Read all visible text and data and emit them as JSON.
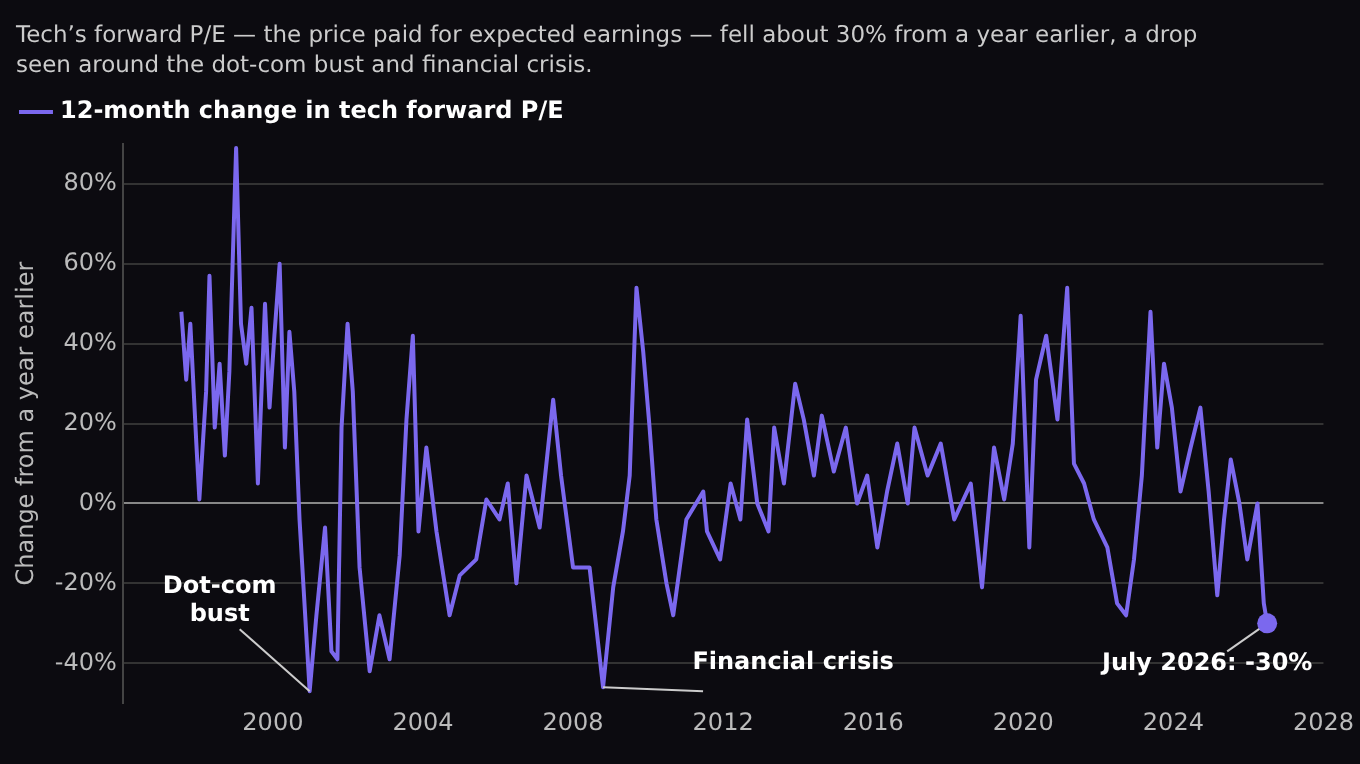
{
  "chart_data": {
    "type": "line",
    "subtitle": "Tech’s forward P/E — the price paid for expected earnings — fell about 30% from a year earlier, a drop seen around the dot-com bust and financial crisis.",
    "ylabel": "Change from a year earlier",
    "legend": "top left",
    "grid": "y",
    "marker": "none",
    "line_style": "solid",
    "xlim": [
      1996,
      2028
    ],
    "xticks": [
      2000,
      2004,
      2008,
      2012,
      2016,
      2020,
      2024,
      2028
    ],
    "ylim": [
      -50,
      90
    ],
    "yticks": [
      {
        "value": -40,
        "label": "-40%"
      },
      {
        "value": -20,
        "label": "-20%"
      },
      {
        "value": 0,
        "label": "0%"
      },
      {
        "value": 20,
        "label": "20%"
      },
      {
        "value": 40,
        "label": "40%"
      },
      {
        "value": 60,
        "label": "60%"
      },
      {
        "value": 80,
        "label": "80%"
      }
    ],
    "annotations": [
      {
        "text": "Dot-com bust",
        "x": 2000.98,
        "y": -47
      },
      {
        "text": "Financial crisis",
        "x": 2008.8,
        "y": -46
      },
      {
        "text": "July 2026: -30%",
        "x": 2026.5,
        "y": -30
      }
    ],
    "series": [
      {
        "name": "12-month change in tech forward P/E",
        "color": "#7b68ee",
        "x": [
          1997.56,
          1997.69,
          1997.8,
          1997.96,
          1998.04,
          1998.22,
          1998.31,
          1998.45,
          1998.58,
          1998.72,
          1998.84,
          1999.02,
          1999.15,
          1999.29,
          1999.43,
          1999.6,
          1999.79,
          1999.91,
          2000.04,
          2000.18,
          2000.32,
          2000.44,
          2000.57,
          2000.71,
          2000.98,
          2001.16,
          2001.39,
          2001.56,
          2001.72,
          2001.83,
          2001.99,
          2002.13,
          2002.31,
          2002.58,
          2002.84,
          2003.11,
          2003.38,
          2003.56,
          2003.73,
          2003.88,
          2004.09,
          2004.36,
          2004.71,
          2004.98,
          2005.42,
          2005.69,
          2006.04,
          2006.26,
          2006.49,
          2006.76,
          2007.11,
          2007.47,
          2007.68,
          2008.0,
          2008.44,
          2008.8,
          2009.07,
          2009.33,
          2009.51,
          2009.69,
          2009.87,
          2010.04,
          2010.22,
          2010.49,
          2010.67,
          2011.02,
          2011.47,
          2011.57,
          2011.92,
          2012.2,
          2012.46,
          2012.64,
          2012.91,
          2013.21,
          2013.36,
          2013.62,
          2013.92,
          2014.15,
          2014.42,
          2014.63,
          2014.95,
          2015.27,
          2015.57,
          2015.84,
          2016.11,
          2016.37,
          2016.64,
          2016.92,
          2017.1,
          2017.45,
          2017.8,
          2018.16,
          2018.6,
          2018.9,
          2019.22,
          2019.49,
          2019.72,
          2019.93,
          2020.16,
          2020.34,
          2020.61,
          2020.91,
          2021.17,
          2021.35,
          2021.62,
          2021.88,
          2022.24,
          2022.5,
          2022.74,
          2022.95,
          2023.16,
          2023.39,
          2023.57,
          2023.75,
          2023.96,
          2024.19,
          2024.46,
          2024.72,
          2024.94,
          2025.17,
          2025.35,
          2025.53,
          2025.76,
          2025.97,
          2026.24,
          2026.41,
          2026.5
        ],
        "values": [
          48,
          31,
          45,
          15,
          1,
          28,
          57,
          19,
          35,
          12,
          33,
          89,
          45,
          35,
          49,
          5,
          50,
          24,
          42,
          60,
          14,
          43,
          28,
          -4,
          -47,
          -28,
          -6,
          -37,
          -39,
          19,
          45,
          28,
          -16,
          -42,
          -28,
          -39,
          -13,
          21,
          42,
          -7,
          14,
          -7,
          -28,
          -18,
          -14,
          1,
          -4,
          5,
          -20,
          7,
          -6,
          26,
          7,
          -16,
          -16,
          -46,
          -21,
          -7,
          7,
          54,
          38,
          19,
          -4,
          -20,
          -28,
          -4,
          3,
          -7,
          -14,
          5,
          -4,
          21,
          0,
          -7,
          19,
          5,
          30,
          21,
          7,
          22,
          8,
          19,
          0,
          7,
          -11,
          3,
          15,
          0,
          19,
          7,
          15,
          -4,
          5,
          -21,
          14,
          1,
          15,
          47,
          -11,
          31,
          42,
          21,
          54,
          10,
          5,
          -4,
          -11,
          -25,
          -28,
          -14,
          7,
          48,
          14,
          35,
          24,
          3,
          14,
          24,
          3,
          -23,
          -4,
          11,
          0,
          -14,
          0,
          -25,
          -30
        ]
      }
    ]
  }
}
